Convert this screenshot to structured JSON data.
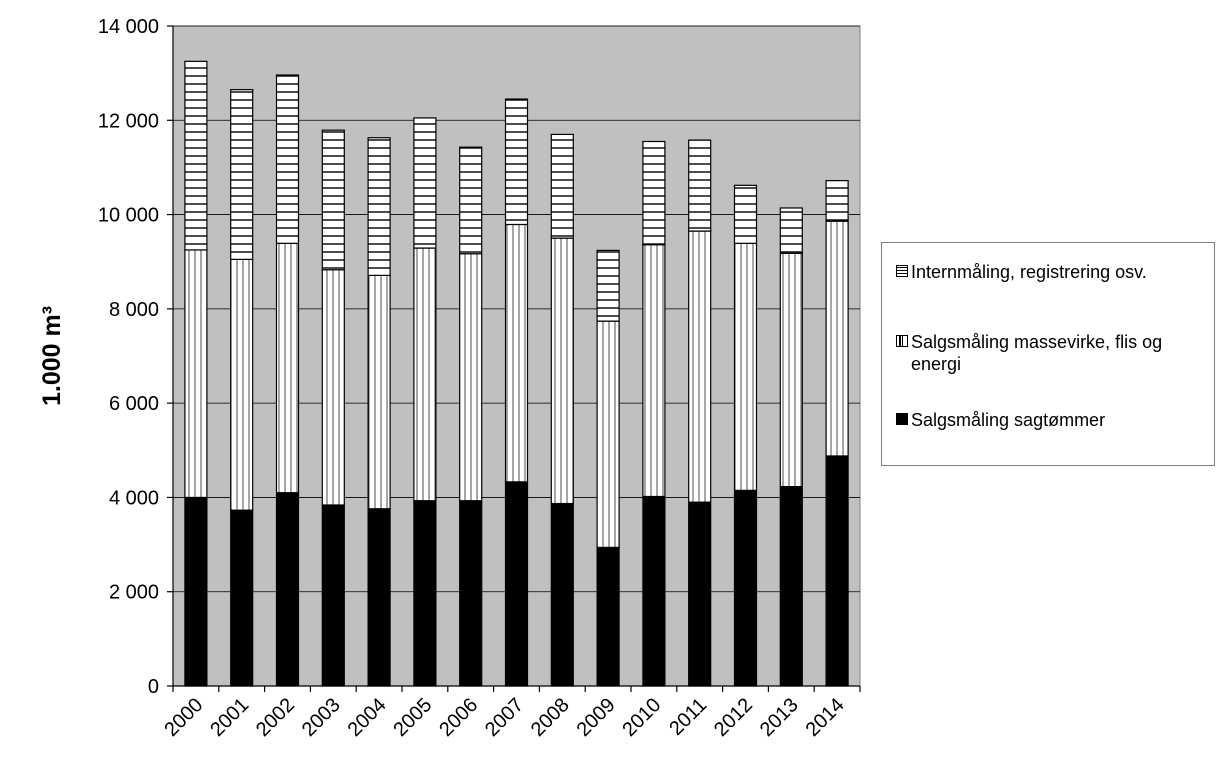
{
  "chart_data": {
    "type": "bar",
    "stacked": true,
    "categories": [
      "2000",
      "2001",
      "2002",
      "2003",
      "2004",
      "2005",
      "2006",
      "2007",
      "2008",
      "2009",
      "2010",
      "2011",
      "2012",
      "2013",
      "2014"
    ],
    "series": [
      {
        "name": "Salgsmåling sagtømmer",
        "color": "#000000",
        "pattern": "solid",
        "values": [
          4000,
          3730,
          4100,
          3840,
          3760,
          3930,
          3930,
          4330,
          3870,
          2940,
          4020,
          3900,
          4150,
          4230,
          4880
        ]
      },
      {
        "name": "Salgsmåling massevirke, flis og energi",
        "color": "#ffffff",
        "pattern": "vertical-lines",
        "values": [
          5250,
          5320,
          5290,
          4990,
          4950,
          5360,
          5240,
          5460,
          5630,
          4800,
          5340,
          5750,
          5240,
          4950,
          4980
        ]
      },
      {
        "name": "Internmåling, registrering osv.",
        "color": "#ffffff",
        "pattern": "horizontal-lines",
        "values": [
          4000,
          3600,
          3570,
          2960,
          2920,
          2760,
          2260,
          2660,
          2200,
          1500,
          2190,
          1930,
          1230,
          960,
          860
        ]
      }
    ],
    "ylabel": "1.000 m³",
    "ylim": [
      0,
      14000
    ],
    "yticks": [
      "0",
      "2 000",
      "4 000",
      "6 000",
      "8 000",
      "10 000",
      "12 000",
      "14 000"
    ],
    "ytick_values": [
      0,
      2000,
      4000,
      6000,
      8000,
      10000,
      12000,
      14000
    ],
    "grid": true,
    "plot_background": "#c0c0c0",
    "legend_position": "right",
    "legend_order": [
      "Internmåling, registrering osv.",
      "Salgsmåling massevirke, flis og energi",
      "Salgsmåling sagtømmer"
    ]
  },
  "legend": {
    "items": [
      {
        "label": "Internmåling, registrering osv."
      },
      {
        "label": "Salgsmåling massevirke, flis og energi"
      },
      {
        "label": "Salgsmåling sagtømmer"
      }
    ]
  }
}
